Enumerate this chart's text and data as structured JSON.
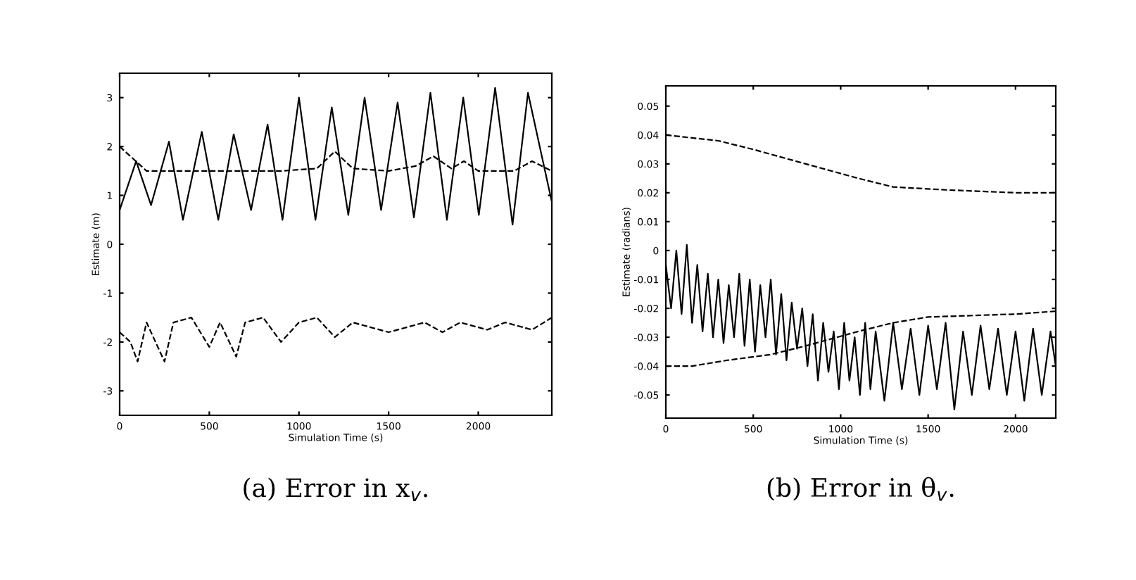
{
  "chart_data": [
    {
      "type": "line",
      "xlabel": "Simulation Time (s)",
      "ylabel": "Estimate (m)",
      "annotations": [
        "(a) Error in x$_{v}$."
      ],
      "xlim": [
        0,
        2410
      ],
      "xticks": [
        0,
        500,
        1000,
        1500,
        2000
      ],
      "ylim": [
        -3.5,
        3.5
      ],
      "yticks": [
        -3,
        -2,
        -1,
        0,
        1,
        2,
        3
      ],
      "series": [
        {
          "color": "#000000",
          "line_style": "solid",
          "x": [
            0,
            92,
            175,
            275,
            353,
            458,
            550,
            636,
            733,
            825,
            908,
            1000,
            1092,
            1183,
            1275,
            1366,
            1458,
            1550,
            1641,
            1733,
            1825,
            1916,
            2003,
            2094,
            2191,
            2277,
            2408
          ],
          "values": [
            0.7,
            1.7,
            0.8,
            2.1,
            0.5,
            2.3,
            0.5,
            2.25,
            0.7,
            2.45,
            0.5,
            3.0,
            0.5,
            2.8,
            0.6,
            3.0,
            0.7,
            2.9,
            0.55,
            3.1,
            0.5,
            3.0,
            0.6,
            3.2,
            0.4,
            3.1,
            0.9
          ]
        },
        {
          "color": "#000000",
          "line_style": "dashed",
          "x": [
            0,
            60,
            150,
            300,
            600,
            900,
            1100,
            1200,
            1300,
            1500,
            1650,
            1750,
            1850,
            1920,
            2000,
            2200,
            2300,
            2410
          ],
          "values": [
            2.0,
            1.8,
            1.5,
            1.5,
            1.5,
            1.5,
            1.55,
            1.9,
            1.55,
            1.5,
            1.6,
            1.8,
            1.55,
            1.7,
            1.5,
            1.5,
            1.7,
            1.5
          ]
        },
        {
          "color": "#000000",
          "line_style": "dashed",
          "x": [
            0,
            60,
            100,
            150,
            250,
            300,
            400,
            500,
            560,
            650,
            700,
            800,
            900,
            1000,
            1100,
            1200,
            1300,
            1500,
            1700,
            1800,
            1900,
            2050,
            2150,
            2300,
            2410
          ],
          "values": [
            -1.8,
            -2.0,
            -2.4,
            -1.6,
            -2.4,
            -1.6,
            -1.5,
            -2.1,
            -1.6,
            -2.3,
            -1.6,
            -1.5,
            -2.0,
            -1.6,
            -1.5,
            -1.9,
            -1.6,
            -1.8,
            -1.6,
            -1.8,
            -1.6,
            -1.75,
            -1.6,
            -1.75,
            -1.5
          ]
        }
      ]
    },
    {
      "type": "line",
      "xlabel": "Simulation Time (s)",
      "ylabel": "Estimate (radians)",
      "annotations": [
        "(b) Error in θ$_{v}$."
      ],
      "xlim": [
        0,
        2230
      ],
      "xticks": [
        0,
        500,
        1000,
        1500,
        2000
      ],
      "ylim": [
        -0.058,
        0.057
      ],
      "yticks": [
        -0.05,
        -0.04,
        -0.03,
        -0.02,
        -0.01,
        0,
        0.01,
        0.02,
        0.03,
        0.04,
        0.05
      ],
      "series": [
        {
          "color": "#000000",
          "line_style": "solid",
          "x": [
            0,
            30,
            60,
            90,
            120,
            150,
            180,
            210,
            240,
            270,
            300,
            330,
            360,
            390,
            420,
            450,
            480,
            510,
            540,
            570,
            600,
            630,
            660,
            690,
            720,
            750,
            780,
            810,
            840,
            870,
            900,
            930,
            960,
            990,
            1020,
            1050,
            1080,
            1110,
            1140,
            1170,
            1200,
            1250,
            1300,
            1350,
            1400,
            1450,
            1500,
            1550,
            1600,
            1650,
            1700,
            1750,
            1800,
            1850,
            1900,
            1950,
            2000,
            2050,
            2100,
            2150,
            2200,
            2230
          ],
          "values": [
            -0.005,
            -0.02,
            0.0,
            -0.022,
            0.002,
            -0.025,
            -0.005,
            -0.028,
            -0.008,
            -0.03,
            -0.01,
            -0.032,
            -0.012,
            -0.03,
            -0.008,
            -0.033,
            -0.01,
            -0.035,
            -0.012,
            -0.03,
            -0.01,
            -0.036,
            -0.015,
            -0.038,
            -0.018,
            -0.034,
            -0.02,
            -0.04,
            -0.022,
            -0.045,
            -0.025,
            -0.042,
            -0.028,
            -0.048,
            -0.025,
            -0.045,
            -0.03,
            -0.05,
            -0.025,
            -0.048,
            -0.028,
            -0.052,
            -0.025,
            -0.048,
            -0.027,
            -0.05,
            -0.026,
            -0.048,
            -0.025,
            -0.055,
            -0.028,
            -0.05,
            -0.026,
            -0.048,
            -0.027,
            -0.05,
            -0.028,
            -0.052,
            -0.027,
            -0.05,
            -0.028,
            -0.04
          ]
        },
        {
          "color": "#000000",
          "line_style": "dashed",
          "x": [
            0,
            150,
            300,
            500,
            800,
            1100,
            1300,
            1600,
            2000,
            2230
          ],
          "values": [
            0.04,
            0.039,
            0.038,
            0.035,
            0.03,
            0.025,
            0.022,
            0.021,
            0.02,
            0.02
          ]
        },
        {
          "color": "#000000",
          "line_style": "dashed",
          "x": [
            0,
            150,
            350,
            600,
            800,
            1100,
            1300,
            1500,
            2000,
            2230
          ],
          "values": [
            -0.04,
            -0.04,
            -0.038,
            -0.036,
            -0.033,
            -0.028,
            -0.025,
            -0.023,
            -0.022,
            -0.021
          ]
        }
      ]
    }
  ]
}
